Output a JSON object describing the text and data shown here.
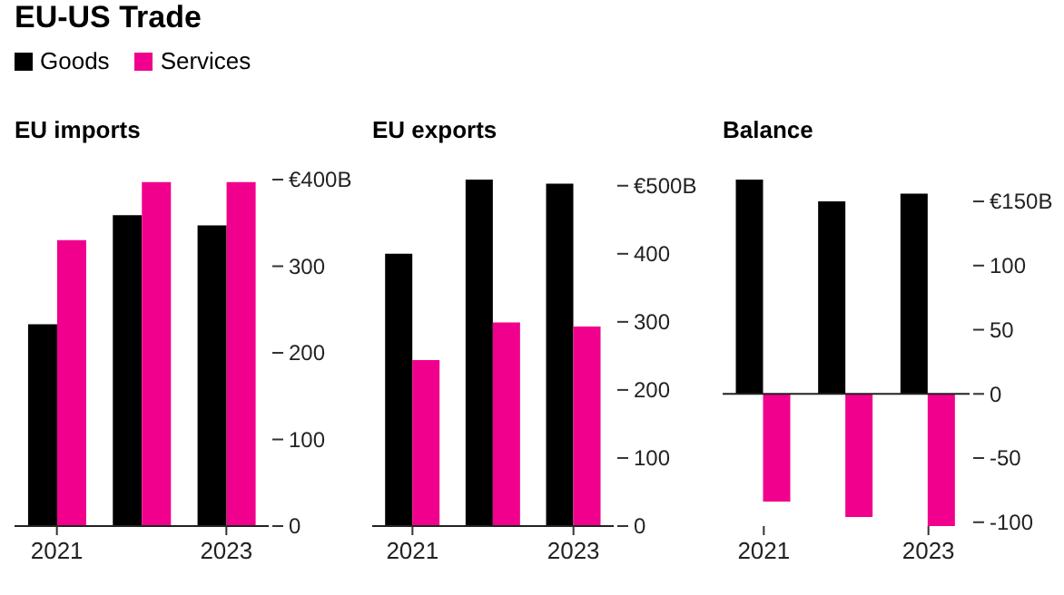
{
  "chart_data": [
    {
      "type": "bar",
      "title": "EU-US Trade",
      "subtitle": "EU imports",
      "categories": [
        "2021",
        null,
        "2023"
      ],
      "legend": "top left",
      "series": [
        {
          "name": "Goods",
          "color": "#000000",
          "values": [
            233,
            359,
            347
          ]
        },
        {
          "name": "Services",
          "color": "#f0008c",
          "values": [
            330,
            397,
            397
          ]
        }
      ],
      "ylim": [
        0,
        400
      ],
      "yticks": [
        0,
        100,
        200,
        300,
        {
          "value": 400,
          "label": "€400B"
        }
      ]
    },
    {
      "type": "bar",
      "subtitle": "EU exports",
      "categories": [
        "2021",
        null,
        "2023"
      ],
      "series": [
        {
          "color": "#000000",
          "values": [
            400,
            509,
            503
          ]
        },
        {
          "color": "#f0008c",
          "values": [
            244,
            299,
            293
          ]
        }
      ],
      "ylim": [
        0,
        509
      ],
      "yticks": [
        0,
        100,
        200,
        300,
        400,
        {
          "value": 500,
          "label": "€500B"
        }
      ]
    },
    {
      "type": "bar",
      "subtitle": "Balance",
      "categories": [
        "2021",
        null,
        "2023"
      ],
      "series": [
        {
          "color": "#000000",
          "values": [
            167,
            150,
            156
          ]
        },
        {
          "color": "#f0008c",
          "values": [
            -84,
            -96,
            -103
          ]
        }
      ],
      "ylim": [
        -103,
        167
      ],
      "yticks": [
        -100,
        -50,
        0,
        50,
        100,
        {
          "value": 150,
          "label": "€150B"
        }
      ],
      "ref_lines": [
        {
          "axis": "y",
          "value": 0,
          "color": "#222222"
        }
      ]
    }
  ]
}
